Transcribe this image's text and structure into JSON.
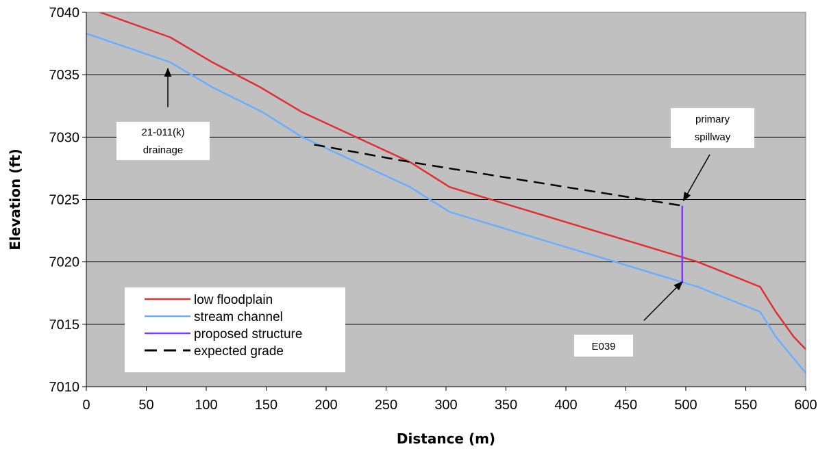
{
  "chart_data": {
    "type": "line",
    "title": "",
    "xlabel": "Distance (m)",
    "ylabel": "Elevation (ft)",
    "xlim": [
      0,
      600
    ],
    "ylim": [
      7010,
      7040
    ],
    "x_ticks": [
      0,
      50,
      100,
      150,
      200,
      250,
      300,
      350,
      400,
      450,
      500,
      550,
      600
    ],
    "y_ticks": [
      7010,
      7015,
      7020,
      7025,
      7030,
      7035,
      7040
    ],
    "grid": "horizontal",
    "plot_background": "#c0c0c0",
    "legend_position": "bottom-left",
    "series": [
      {
        "name": "low floodplain",
        "color": "#e03030",
        "style": "solid",
        "points": [
          [
            0,
            7040.4
          ],
          [
            70,
            7038
          ],
          [
            105,
            7036
          ],
          [
            145,
            7034
          ],
          [
            180,
            7032
          ],
          [
            270,
            7028
          ],
          [
            303,
            7026
          ],
          [
            510,
            7020
          ],
          [
            562,
            7018
          ],
          [
            575,
            7016
          ],
          [
            590,
            7014
          ],
          [
            600,
            7013
          ]
        ]
      },
      {
        "name": "stream channel",
        "color": "#6aaeff",
        "style": "solid",
        "points": [
          [
            0,
            7038.3
          ],
          [
            70,
            7036
          ],
          [
            105,
            7034
          ],
          [
            147,
            7032
          ],
          [
            180,
            7030
          ],
          [
            270,
            7026
          ],
          [
            303,
            7024
          ],
          [
            510,
            7018
          ],
          [
            562,
            7016
          ],
          [
            575,
            7014
          ],
          [
            600,
            7011.1
          ]
        ]
      },
      {
        "name": "proposed structure",
        "color": "#7b3cff",
        "style": "solid",
        "points": [
          [
            497,
            7018.3
          ],
          [
            497,
            7024.5
          ]
        ]
      },
      {
        "name": "expected grade",
        "color": "#000000",
        "style": "dashed",
        "points": [
          [
            190,
            7029.4
          ],
          [
            270,
            7028
          ],
          [
            497,
            7024.5
          ]
        ]
      }
    ],
    "annotations": [
      {
        "name": "drainage",
        "lines": [
          "21-011(k)",
          "drainage"
        ],
        "arrow_from": [
          68,
          7032.4
        ],
        "arrow_to": [
          68,
          7035.5
        ]
      },
      {
        "name": "spillway",
        "lines": [
          "primary",
          "spillway"
        ],
        "arrow_from": [
          520,
          7028.6
        ],
        "arrow_to": [
          498,
          7024.9
        ]
      },
      {
        "name": "e039",
        "lines": [
          "E039"
        ],
        "arrow_from": [
          465,
          7015.3
        ],
        "arrow_to": [
          497,
          7018.4
        ]
      }
    ]
  }
}
